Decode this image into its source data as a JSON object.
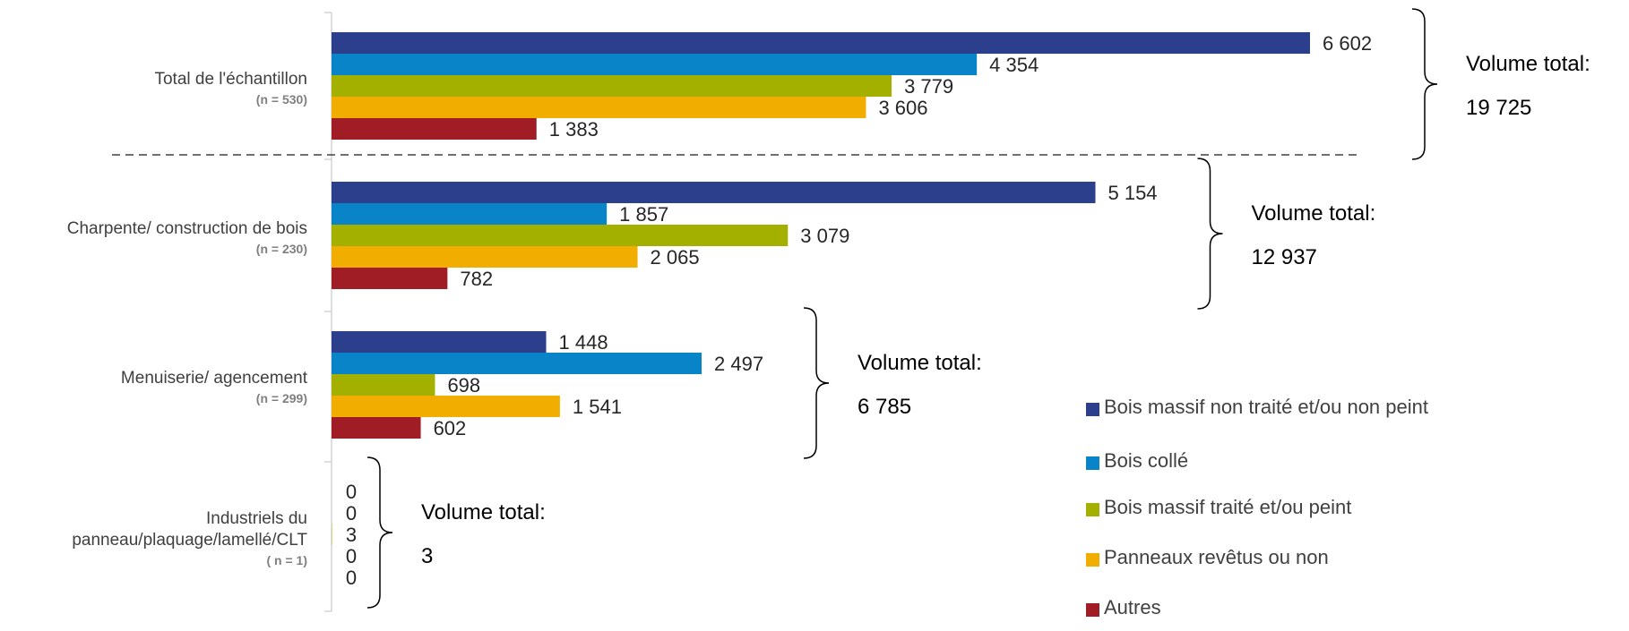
{
  "chart_data": {
    "type": "bar",
    "orientation": "horizontal",
    "grid": false,
    "legend_position": "bottom-right",
    "xlim": [
      0,
      7000
    ],
    "series": [
      {
        "name": "Bois massif non traité et/ou non peint",
        "color": "#2b3f8c"
      },
      {
        "name": "Bois collé",
        "color": "#0a84c8"
      },
      {
        "name": "Bois massif traité et/ou peint",
        "color": "#a3b000"
      },
      {
        "name": "Panneaux revêtus ou non",
        "color": "#f2ae00"
      },
      {
        "name": "Autres",
        "color": "#a01d25"
      }
    ],
    "groups": [
      {
        "name_lines": [
          "Total de l'échantillon"
        ],
        "n_label": "(n = 530)",
        "values": [
          6602,
          4354,
          3779,
          3606,
          1383
        ],
        "value_labels": [
          "6 602",
          "4 354",
          "3 779",
          "3 606",
          "1 383"
        ],
        "total_label": "Volume total:",
        "total_value": "19 725"
      },
      {
        "name_lines": [
          "Charpente/ construction de bois"
        ],
        "n_label": "(n = 230)",
        "values": [
          5154,
          1857,
          3079,
          2065,
          782
        ],
        "value_labels": [
          "5 154",
          "1 857",
          "3 079",
          "2 065",
          "782"
        ],
        "total_label": "Volume total:",
        "total_value": "12 937"
      },
      {
        "name_lines": [
          "Menuiserie/ agencement"
        ],
        "n_label": "(n = 299)",
        "values": [
          1448,
          2497,
          698,
          1541,
          602
        ],
        "value_labels": [
          "1 448",
          "2 497",
          "698",
          "1 541",
          "602"
        ],
        "total_label": "Volume total:",
        "total_value": "6 785"
      },
      {
        "name_lines": [
          "Industriels du",
          "panneau/plaquage/lamellé/CLT"
        ],
        "n_label": "( n = 1)",
        "values": [
          0,
          0,
          3,
          0,
          0
        ],
        "value_labels": [
          "0",
          "0",
          "3",
          "0",
          "0"
        ],
        "total_label": "Volume total:",
        "total_value": "3"
      }
    ]
  }
}
